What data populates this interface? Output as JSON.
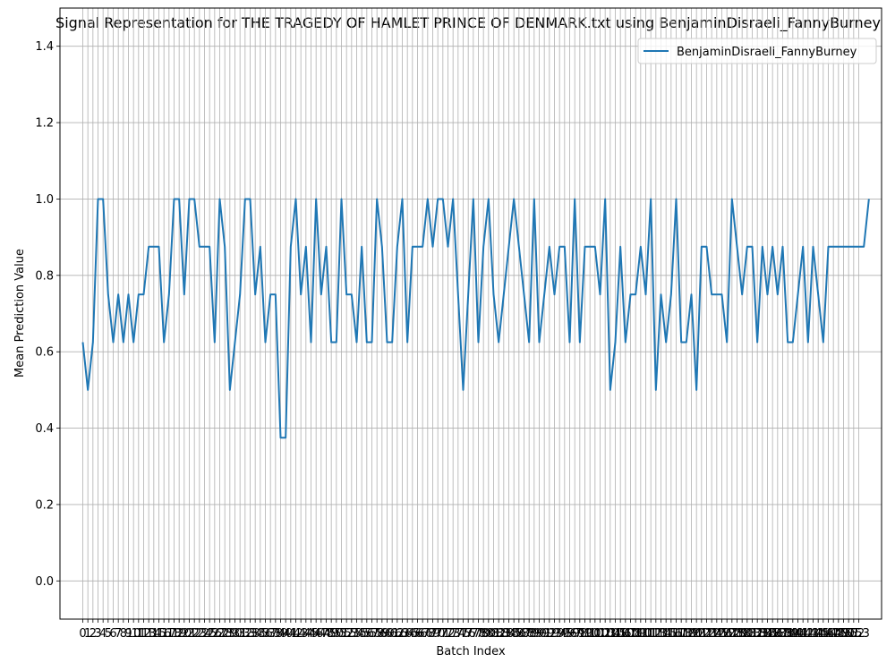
{
  "chart_data": {
    "type": "line",
    "title": "Signal Representation for THE TRAGEDY OF HAMLET PRINCE OF DENMARK.txt using BenjaminDisraeli_FannyBurney",
    "xlabel": "Batch Index",
    "ylabel": "Mean Prediction Value",
    "xlim": [
      -4.5,
      157.5
    ],
    "ylim": [
      -0.1,
      1.5
    ],
    "yticks": [
      0.0,
      0.2,
      0.4,
      0.6,
      0.8,
      1.0,
      1.2,
      1.4
    ],
    "ytick_labels": [
      "0.0",
      "0.2",
      "0.4",
      "0.6",
      "0.8",
      "1.0",
      "1.2",
      "1.4"
    ],
    "xticks_start": 0,
    "xticks_end": 153,
    "grid": true,
    "legend_position": "top-right",
    "series_color": "#1f77b4",
    "series": [
      {
        "name": "BenjaminDisraeli_FannyBurney",
        "values": [
          0.625,
          0.5,
          0.625,
          1.0,
          1.0,
          0.75,
          0.625,
          0.75,
          0.625,
          0.75,
          0.625,
          0.75,
          0.75,
          0.875,
          0.875,
          0.875,
          0.625,
          0.75,
          1.0,
          1.0,
          0.75,
          1.0,
          1.0,
          0.875,
          0.875,
          0.875,
          0.625,
          1.0,
          0.875,
          0.5,
          0.625,
          0.75,
          1.0,
          1.0,
          0.75,
          0.875,
          0.625,
          0.75,
          0.75,
          0.375,
          0.375,
          0.875,
          1.0,
          0.75,
          0.875,
          0.625,
          1.0,
          0.75,
          0.875,
          0.625,
          0.625,
          1.0,
          0.75,
          0.75,
          0.625,
          0.875,
          0.625,
          0.625,
          1.0,
          0.875,
          0.625,
          0.625,
          0.875,
          1.0,
          0.625,
          0.875,
          0.875,
          0.875,
          1.0,
          0.875,
          1.0,
          1.0,
          0.875,
          1.0,
          0.75,
          0.5,
          0.75,
          1.0,
          0.625,
          0.875,
          1.0,
          0.75,
          0.625,
          0.75,
          0.875,
          1.0,
          0.875,
          0.75,
          0.625,
          1.0,
          0.625,
          0.75,
          0.875,
          0.75,
          0.875,
          0.875,
          0.625,
          1.0,
          0.625,
          0.875,
          0.875,
          0.875,
          0.75,
          1.0,
          0.5,
          0.625,
          0.875,
          0.625,
          0.75,
          0.75,
          0.875,
          0.75,
          1.0,
          0.5,
          0.75,
          0.625,
          0.75,
          1.0,
          0.625,
          0.625,
          0.75,
          0.5,
          0.875,
          0.875,
          0.75,
          0.75,
          0.75,
          0.625,
          1.0,
          0.875,
          0.75,
          0.875,
          0.875,
          0.625,
          0.875,
          0.75,
          0.875,
          0.75,
          0.875,
          0.625,
          0.625,
          0.75,
          0.875,
          0.625,
          0.875,
          0.75,
          0.625,
          0.875,
          0.875,
          0.875,
          0.875,
          0.875,
          0.875,
          0.875,
          0.875,
          1.0
        ]
      }
    ]
  }
}
